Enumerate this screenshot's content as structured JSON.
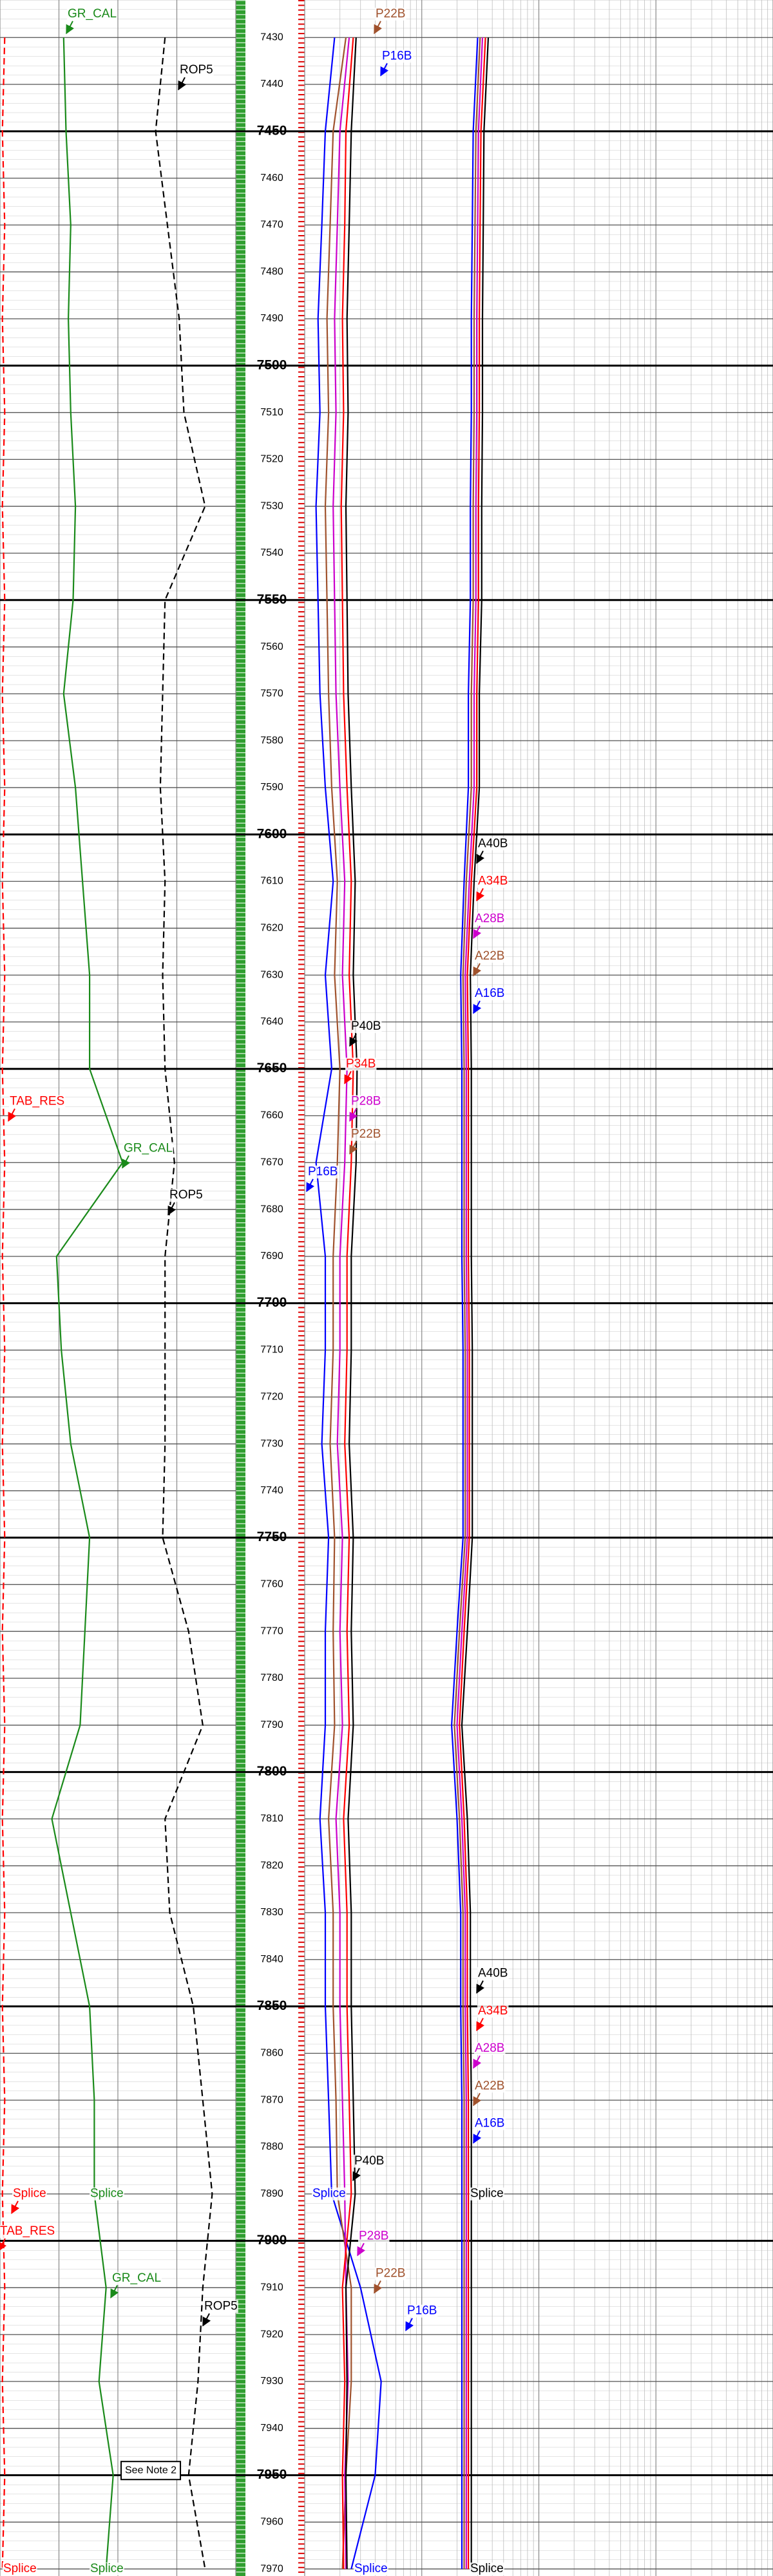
{
  "chart_data": {
    "type": "well-log",
    "depth": [
      7430,
      7450,
      7470,
      7490,
      7510,
      7530,
      7550,
      7570,
      7590,
      7610,
      7630,
      7650,
      7670,
      7690,
      7710,
      7730,
      7750,
      7770,
      7790,
      7810,
      7830,
      7850,
      7870,
      7890,
      7910,
      7930,
      7950,
      7970
    ],
    "ylim": [
      7422,
      7971.5
    ],
    "yticks": [
      7430,
      7440,
      7450,
      7460,
      7470,
      7480,
      7490,
      7500,
      7510,
      7520,
      7530,
      7540,
      7550,
      7560,
      7570,
      7580,
      7590,
      7600,
      7610,
      7620,
      7630,
      7640,
      7650,
      7660,
      7670,
      7680,
      7690,
      7700,
      7710,
      7720,
      7730,
      7740,
      7750,
      7760,
      7770,
      7780,
      7790,
      7800,
      7810,
      7820,
      7830,
      7840,
      7850,
      7860,
      7870,
      7880,
      7890,
      7900,
      7910,
      7920,
      7930,
      7940,
      7950,
      7960,
      7970
    ],
    "tracks": [
      {
        "xlim": [
          0,
          100
        ],
        "xticks": [
          0,
          25,
          50,
          75,
          100
        ],
        "series": [
          {
            "name": "GR_CAL",
            "color": "#1a8a1a",
            "values": [
              27,
              28,
              30,
              29,
              30,
              32,
              31,
              27,
              32,
              35,
              38,
              38,
              52,
              24,
              26,
              30,
              38,
              36,
              34,
              22,
              30,
              38,
              40,
              40,
              45,
              42,
              48,
              45
            ]
          },
          {
            "name": "ROP5",
            "color": "#000000",
            "dashed": true,
            "values": [
              70,
              66,
              71,
              76,
              78,
              87,
              70,
              69,
              68,
              70,
              69,
              70,
              74,
              70,
              70,
              70,
              69,
              80,
              86,
              70,
              72,
              82,
              86,
              90,
              86,
              84,
              80,
              87
            ]
          },
          {
            "name": "TAB_RES",
            "color": "#ff0000",
            "dashed": true,
            "values": [
              2,
              1,
              2,
              1,
              2,
              1,
              2,
              1,
              2,
              1,
              2,
              1,
              2,
              1,
              2,
              1,
              2,
              1,
              2,
              1,
              2,
              1,
              2,
              1,
              2,
              1,
              2,
              1
            ]
          }
        ]
      },
      {
        "xlim": [
          0.2,
          2000
        ],
        "log": true,
        "xticks": [
          0.2,
          2,
          20,
          200,
          2000
        ],
        "series": [
          {
            "name": "P16B",
            "color": "#0000ff",
            "values": [
              0.36,
              0.3,
              0.28,
              0.26,
              0.27,
              0.25,
              0.26,
              0.27,
              0.3,
              0.35,
              0.3,
              0.34,
              0.25,
              0.3,
              0.3,
              0.28,
              0.32,
              0.3,
              0.3,
              0.27,
              0.3,
              0.3,
              0.32,
              0.34,
              0.6,
              0.9,
              0.8,
              0.5
            ]
          },
          {
            "name": "P22B",
            "color": "#a0522d",
            "values": [
              0.45,
              0.35,
              0.33,
              0.31,
              0.32,
              0.3,
              0.31,
              0.32,
              0.34,
              0.38,
              0.36,
              0.4,
              0.38,
              0.35,
              0.35,
              0.33,
              0.36,
              0.35,
              0.36,
              0.32,
              0.35,
              0.35,
              0.37,
              0.38,
              0.5,
              0.5,
              0.45,
              0.42
            ]
          },
          {
            "name": "P28B",
            "color": "#cc00cc",
            "values": [
              0.48,
              0.4,
              0.38,
              0.36,
              0.37,
              0.35,
              0.36,
              0.37,
              0.4,
              0.44,
              0.42,
              0.46,
              0.44,
              0.4,
              0.4,
              0.38,
              0.42,
              0.4,
              0.42,
              0.37,
              0.4,
              0.4,
              0.42,
              0.44,
              0.45,
              0.47,
              0.44,
              0.45
            ]
          },
          {
            "name": "P34B",
            "color": "#ff0000",
            "values": [
              0.52,
              0.45,
              0.44,
              0.42,
              0.43,
              0.41,
              0.42,
              0.43,
              0.46,
              0.5,
              0.48,
              0.52,
              0.5,
              0.46,
              0.46,
              0.44,
              0.48,
              0.46,
              0.48,
              0.43,
              0.46,
              0.46,
              0.48,
              0.5,
              0.42,
              0.44,
              0.42,
              0.43
            ]
          },
          {
            "name": "P40B",
            "color": "#000000",
            "values": [
              0.55,
              0.5,
              0.48,
              0.46,
              0.47,
              0.45,
              0.46,
              0.47,
              0.5,
              0.54,
              0.52,
              0.56,
              0.55,
              0.5,
              0.5,
              0.48,
              0.52,
              0.5,
              0.52,
              0.47,
              0.5,
              0.5,
              0.52,
              0.54,
              0.45,
              0.46,
              0.45,
              0.46
            ]
          },
          {
            "name": "A16B",
            "color": "#0000ff",
            "values": [
              6,
              5.5,
              5.4,
              5.3,
              5.3,
              5.2,
              5.2,
              5,
              5,
              4.6,
              4.3,
              4.4,
              4.4,
              4.4,
              4.5,
              4.5,
              4.5,
              4,
              3.6,
              4,
              4.3,
              4.3,
              4.4,
              4.4,
              4.4,
              4.4,
              4.4,
              4.4
            ]
          },
          {
            "name": "A22B",
            "color": "#a0522d",
            "values": [
              6.3,
              5.8,
              5.7,
              5.6,
              5.6,
              5.5,
              5.5,
              5.3,
              5.3,
              4.8,
              4.5,
              4.6,
              4.6,
              4.6,
              4.7,
              4.7,
              4.7,
              4.2,
              3.8,
              4.2,
              4.5,
              4.5,
              4.6,
              4.6,
              4.6,
              4.6,
              4.6,
              4.6
            ]
          },
          {
            "name": "A28B",
            "color": "#cc00cc",
            "values": [
              6.6,
              6.1,
              6,
              5.9,
              5.9,
              5.8,
              5.8,
              5.6,
              5.6,
              5.1,
              4.7,
              4.8,
              4.8,
              4.8,
              4.9,
              4.9,
              4.9,
              4.4,
              4,
              4.4,
              4.7,
              4.7,
              4.8,
              4.8,
              4.8,
              4.8,
              4.8,
              4.8
            ]
          },
          {
            "name": "A34B",
            "color": "#ff0000",
            "values": [
              7,
              6.4,
              6.3,
              6.2,
              6.2,
              6.1,
              6.1,
              5.9,
              5.9,
              5.3,
              4.9,
              5,
              5,
              5,
              5.1,
              5.1,
              5.1,
              4.6,
              4.2,
              4.6,
              4.9,
              4.9,
              5,
              5,
              5,
              5,
              5,
              5
            ]
          },
          {
            "name": "A40B",
            "color": "#000000",
            "values": [
              7.4,
              6.8,
              6.7,
              6.6,
              6.6,
              6.5,
              6.5,
              6.2,
              6.2,
              5.6,
              5.2,
              5.3,
              5.3,
              5.3,
              5.4,
              5.4,
              5.4,
              4.9,
              4.4,
              4.9,
              5.2,
              5.2,
              5.3,
              5.3,
              5.3,
              5.3,
              5.3,
              5.3
            ]
          }
        ]
      }
    ],
    "annotations": [
      "Splice",
      "See Note 2"
    ]
  }
}
